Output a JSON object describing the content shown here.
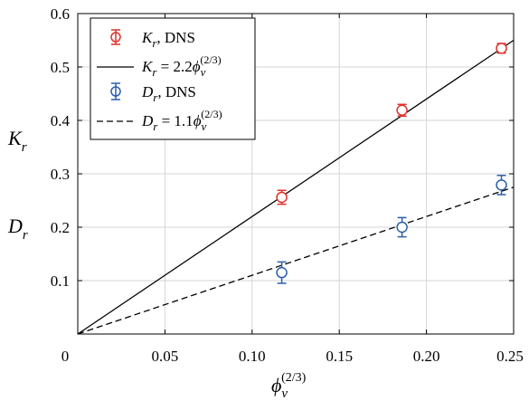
{
  "chart_data": {
    "type": "scatter",
    "xlim": [
      0,
      0.25
    ],
    "ylim": [
      0,
      0.6
    ],
    "x_ticks": [
      0,
      0.05,
      0.1,
      0.15,
      0.2,
      0.25
    ],
    "x_tick_labels": [
      "0",
      "0.05",
      "0.10",
      "0.15",
      "0.20",
      "0.25"
    ],
    "y_ticks": [
      0.1,
      0.2,
      0.3,
      0.4,
      0.5,
      0.6
    ],
    "y_tick_labels": [
      "0.1",
      "0.2",
      "0.3",
      "0.4",
      "0.5",
      "0.6"
    ],
    "grid": true,
    "xlabel": {
      "base": "ϕ",
      "sub": "v",
      "sup": "(2/3)"
    },
    "ylabels": [
      {
        "base": "K",
        "sub": "r"
      },
      {
        "base": "D",
        "sub": "r"
      }
    ],
    "legend_position": "top-left",
    "series": [
      {
        "name": "K_r, DNS",
        "label": {
          "base": "K",
          "sub": "r",
          "rest": ", DNS"
        },
        "kind": "points",
        "color": "#e0312a",
        "marker": "circle",
        "x": [
          0.117,
          0.186,
          0.243
        ],
        "y": [
          0.256,
          0.419,
          0.535
        ],
        "err": [
          0.013,
          0.011,
          0.009
        ]
      },
      {
        "name": "K_r = 2.2 ϕ_v^(2/3)",
        "label": {
          "base": "K",
          "sub": "r",
          "rest": " = 2.2",
          "sym": "ϕ",
          "sym_sub": "v",
          "sym_sup": "(2/3)"
        },
        "kind": "line",
        "color": "#000000",
        "dash": "solid",
        "x": [
          0,
          0.25
        ],
        "y": [
          0,
          0.55
        ]
      },
      {
        "name": "D_r, DNS",
        "label": {
          "base": "D",
          "sub": "r",
          "rest": ", DNS"
        },
        "kind": "points",
        "color": "#2b5fa8",
        "marker": "circle",
        "x": [
          0.117,
          0.186,
          0.243
        ],
        "y": [
          0.115,
          0.2,
          0.279
        ],
        "err": [
          0.02,
          0.018,
          0.018
        ]
      },
      {
        "name": "D_r = 1.1 ϕ_v^(2/3)",
        "label": {
          "base": "D",
          "sub": "r",
          "rest": " = 1.1",
          "sym": "ϕ",
          "sym_sub": "v",
          "sym_sup": "(2/3)"
        },
        "kind": "line",
        "color": "#000000",
        "dash": "dashed",
        "x": [
          0,
          0.25
        ],
        "y": [
          0,
          0.275
        ]
      }
    ]
  }
}
